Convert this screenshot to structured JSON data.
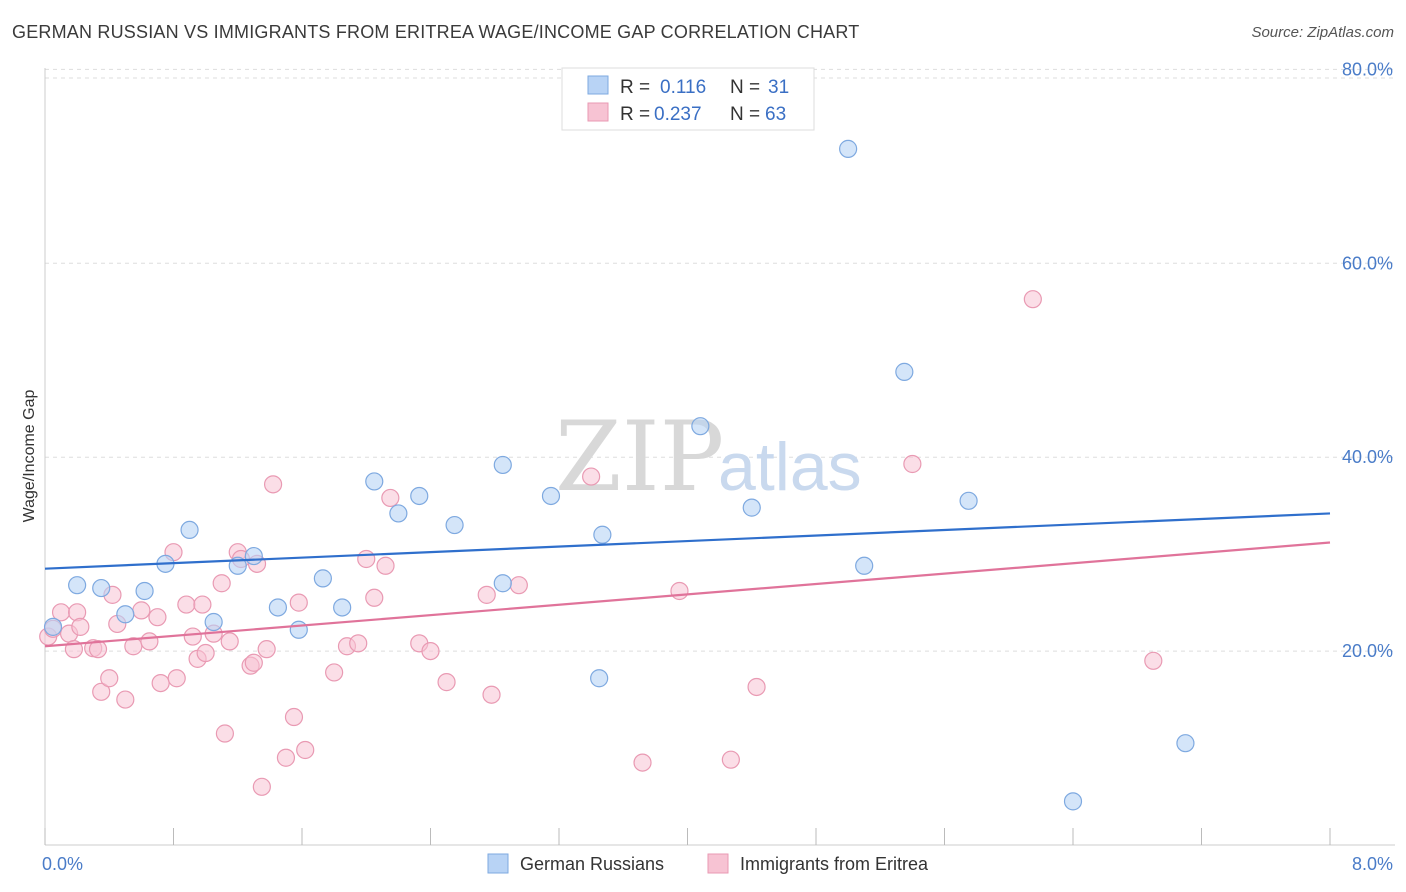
{
  "title": "GERMAN RUSSIAN VS IMMIGRANTS FROM ERITREA WAGE/INCOME GAP CORRELATION CHART",
  "source": "Source: ZipAtlas.com",
  "watermark": {
    "zip": "ZIP",
    "atlas": "atlas"
  },
  "colors": {
    "blue_fill": "#b8d3f5",
    "blue_stroke": "#7ea9e0",
    "blue_line": "#2f6fcc",
    "pink_fill": "#f7c3d3",
    "pink_stroke": "#e99ab3",
    "pink_line": "#e0739a",
    "tick_text": "#4a7cc8",
    "grid": "#dddddd"
  },
  "legend": {
    "row1": {
      "r_label": "R =",
      "r_value": "0.116",
      "n_label": "N =",
      "n_value": "31"
    },
    "row2": {
      "r_label": "R =",
      "r_value": "0.237",
      "n_label": "N =",
      "n_value": "63"
    }
  },
  "chart_data": {
    "type": "scatter",
    "title": "GERMAN RUSSIAN VS IMMIGRANTS FROM ERITREA WAGE/INCOME GAP CORRELATION CHART",
    "xlabel": "",
    "ylabel": "Wage/Income Gap",
    "xlim": [
      0,
      8
    ],
    "ylim": [
      0,
      82
    ],
    "x_tick_labels": [
      "0.0%",
      "8.0%"
    ],
    "y_ticks": [
      20,
      40,
      60,
      80
    ],
    "y_tick_labels": [
      "20.0%",
      "40.0%",
      "60.0%",
      "80.0%"
    ],
    "series": [
      {
        "name": "German Russians",
        "color": "#b8d3f5",
        "trend": {
          "x": [
            0,
            8
          ],
          "y": [
            28.5,
            34.2
          ]
        },
        "points": [
          [
            0.05,
            22.5
          ],
          [
            0.2,
            26.8
          ],
          [
            0.35,
            26.5
          ],
          [
            0.5,
            23.8
          ],
          [
            0.62,
            26.2
          ],
          [
            0.75,
            29.0
          ],
          [
            0.9,
            32.5
          ],
          [
            1.05,
            23.0
          ],
          [
            1.2,
            28.8
          ],
          [
            1.3,
            29.8
          ],
          [
            1.45,
            24.5
          ],
          [
            1.58,
            22.2
          ],
          [
            1.73,
            27.5
          ],
          [
            1.85,
            24.5
          ],
          [
            2.05,
            37.5
          ],
          [
            2.2,
            34.2
          ],
          [
            2.33,
            36.0
          ],
          [
            2.55,
            33.0
          ],
          [
            2.85,
            39.2
          ],
          [
            2.85,
            27.0
          ],
          [
            3.15,
            36.0
          ],
          [
            3.45,
            17.2
          ],
          [
            3.47,
            32.0
          ],
          [
            4.08,
            43.2
          ],
          [
            4.4,
            34.8
          ],
          [
            5.0,
            71.8
          ],
          [
            5.1,
            28.8
          ],
          [
            5.35,
            48.8
          ],
          [
            5.75,
            35.5
          ],
          [
            6.4,
            4.5
          ],
          [
            7.1,
            10.5
          ]
        ]
      },
      {
        "name": "Immigrants from Eritrea",
        "color": "#f7c3d3",
        "trend": {
          "x": [
            0,
            8
          ],
          "y": [
            20.5,
            31.2
          ]
        },
        "points": [
          [
            0.02,
            21.5
          ],
          [
            0.05,
            22.3
          ],
          [
            0.1,
            24.0
          ],
          [
            0.15,
            21.8
          ],
          [
            0.18,
            20.2
          ],
          [
            0.2,
            24.0
          ],
          [
            0.22,
            22.5
          ],
          [
            0.3,
            20.3
          ],
          [
            0.33,
            20.2
          ],
          [
            0.35,
            15.8
          ],
          [
            0.4,
            17.2
          ],
          [
            0.45,
            22.8
          ],
          [
            0.5,
            15.0
          ],
          [
            0.55,
            20.5
          ],
          [
            0.6,
            24.2
          ],
          [
            0.65,
            21.0
          ],
          [
            0.7,
            23.5
          ],
          [
            0.72,
            16.7
          ],
          [
            0.8,
            30.2
          ],
          [
            0.82,
            17.2
          ],
          [
            0.88,
            24.8
          ],
          [
            0.92,
            21.5
          ],
          [
            0.95,
            19.2
          ],
          [
            0.98,
            24.8
          ],
          [
            1.05,
            21.8
          ],
          [
            1.1,
            27.0
          ],
          [
            1.12,
            11.5
          ],
          [
            1.15,
            21.0
          ],
          [
            1.2,
            30.2
          ],
          [
            1.22,
            29.5
          ],
          [
            1.28,
            18.5
          ],
          [
            1.3,
            18.8
          ],
          [
            1.32,
            29.0
          ],
          [
            1.35,
            6.0
          ],
          [
            1.38,
            20.2
          ],
          [
            1.42,
            37.2
          ],
          [
            1.5,
            9.0
          ],
          [
            1.55,
            13.2
          ],
          [
            1.58,
            25.0
          ],
          [
            1.62,
            9.8
          ],
          [
            1.8,
            17.8
          ],
          [
            1.88,
            20.5
          ],
          [
            1.95,
            20.8
          ],
          [
            2.0,
            29.5
          ],
          [
            2.05,
            25.5
          ],
          [
            2.12,
            28.8
          ],
          [
            2.15,
            35.8
          ],
          [
            2.33,
            20.8
          ],
          [
            2.4,
            20.0
          ],
          [
            2.5,
            16.8
          ],
          [
            2.75,
            25.8
          ],
          [
            2.78,
            15.5
          ],
          [
            2.95,
            26.8
          ],
          [
            3.4,
            38.0
          ],
          [
            3.72,
            8.5
          ],
          [
            4.27,
            8.8
          ],
          [
            4.43,
            16.3
          ],
          [
            5.4,
            39.3
          ],
          [
            6.15,
            56.3
          ],
          [
            6.9,
            19.0
          ],
          [
            3.95,
            26.2
          ],
          [
            0.42,
            25.8
          ],
          [
            1.0,
            19.8
          ]
        ]
      }
    ]
  },
  "bottom_legend": {
    "item1": "German Russians",
    "item2": "Immigrants from Eritrea"
  }
}
